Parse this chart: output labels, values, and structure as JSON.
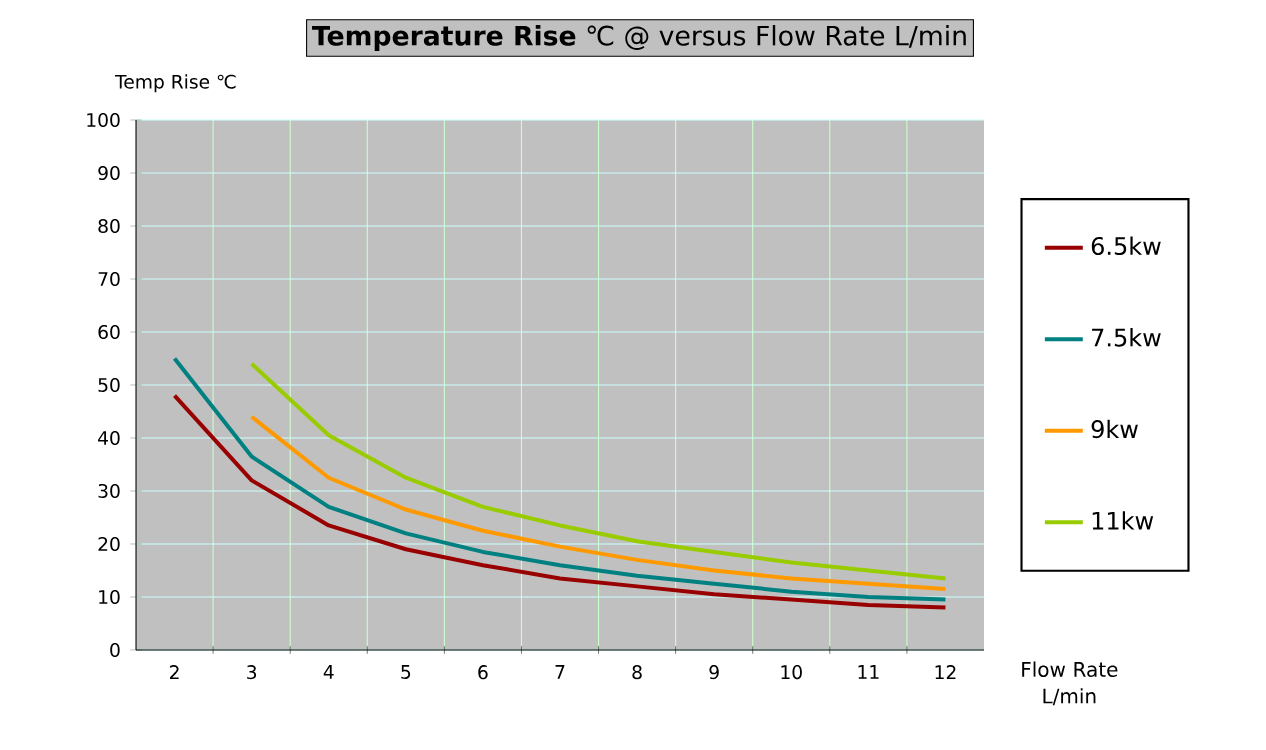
{
  "chart_data": {
    "type": "line",
    "title": "**Temperature Rise** ℃ @ versus Flow Rate L/min",
    "ylabel": "Temp Rise ℃",
    "xlabel": "Flow Rate L/min",
    "categories": [
      "2",
      "3",
      "4",
      "5",
      "6",
      "7",
      "8",
      "9",
      "10",
      "11",
      "12"
    ],
    "series": [
      {
        "name": "6.5kw",
        "color": "#990000",
        "values": [
          48,
          32,
          23.5,
          19,
          16,
          13.5,
          12,
          10.5,
          9.5,
          8.5,
          8
        ]
      },
      {
        "name": "7.5kw",
        "color": "#008080",
        "values": [
          55,
          36.5,
          27,
          22,
          18.5,
          16,
          14,
          12.5,
          11,
          10,
          9.5
        ]
      },
      {
        "name": "9kw",
        "color": "#ff9900",
        "values": [
          null,
          44,
          32.5,
          26.5,
          22.5,
          19.5,
          17,
          15,
          13.5,
          12.5,
          11.5
        ]
      },
      {
        "name": "11kw",
        "color": "#99cc00",
        "values": [
          null,
          54,
          40.5,
          32.5,
          27,
          23.5,
          20.5,
          18.5,
          16.5,
          15,
          13.5
        ]
      }
    ],
    "ylim": [
      0,
      100
    ],
    "yticks": [
      0,
      10,
      20,
      30,
      40,
      50,
      60,
      70,
      80,
      90,
      100
    ],
    "grid": true,
    "legend": "right",
    "marker": "none",
    "line_style": "solid"
  }
}
